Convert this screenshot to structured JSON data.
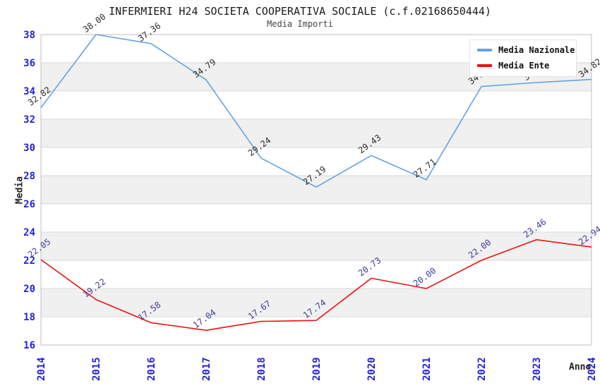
{
  "chart_data": {
    "type": "line",
    "title": "INFERMIERI H24 SOCIETA COOPERATIVA SOCIALE (c.f.02168650444)",
    "subtitle": "Media Importi",
    "xlabel": "Anno",
    "ylabel": "Media",
    "categories": [
      "2014",
      "2015",
      "2016",
      "2017",
      "2018",
      "2019",
      "2020",
      "2021",
      "2022",
      "2023",
      "2024"
    ],
    "series": [
      {
        "name": "Media Nazionale",
        "color": "#64a3e2",
        "label_color": "#2b2b2b",
        "values": [
          32.82,
          38.0,
          37.36,
          34.79,
          29.24,
          27.19,
          29.43,
          27.71,
          34.32,
          34.6,
          34.82
        ]
      },
      {
        "name": "Media Ente",
        "color": "#ee1212",
        "label_color": "#3b3b9e",
        "values": [
          22.05,
          19.22,
          17.58,
          17.04,
          17.67,
          17.74,
          20.73,
          20.0,
          22.0,
          23.46,
          22.94
        ]
      }
    ],
    "ylim": [
      16,
      38
    ],
    "ytick_step": 2,
    "grid": "horizontal-bands",
    "legend_position": "top-right",
    "band_color": "#f0f0f0",
    "grid_color": "#d9d9d9",
    "axis_border_color": "#bfbfbf",
    "tick_label_color": "#2222dd"
  }
}
